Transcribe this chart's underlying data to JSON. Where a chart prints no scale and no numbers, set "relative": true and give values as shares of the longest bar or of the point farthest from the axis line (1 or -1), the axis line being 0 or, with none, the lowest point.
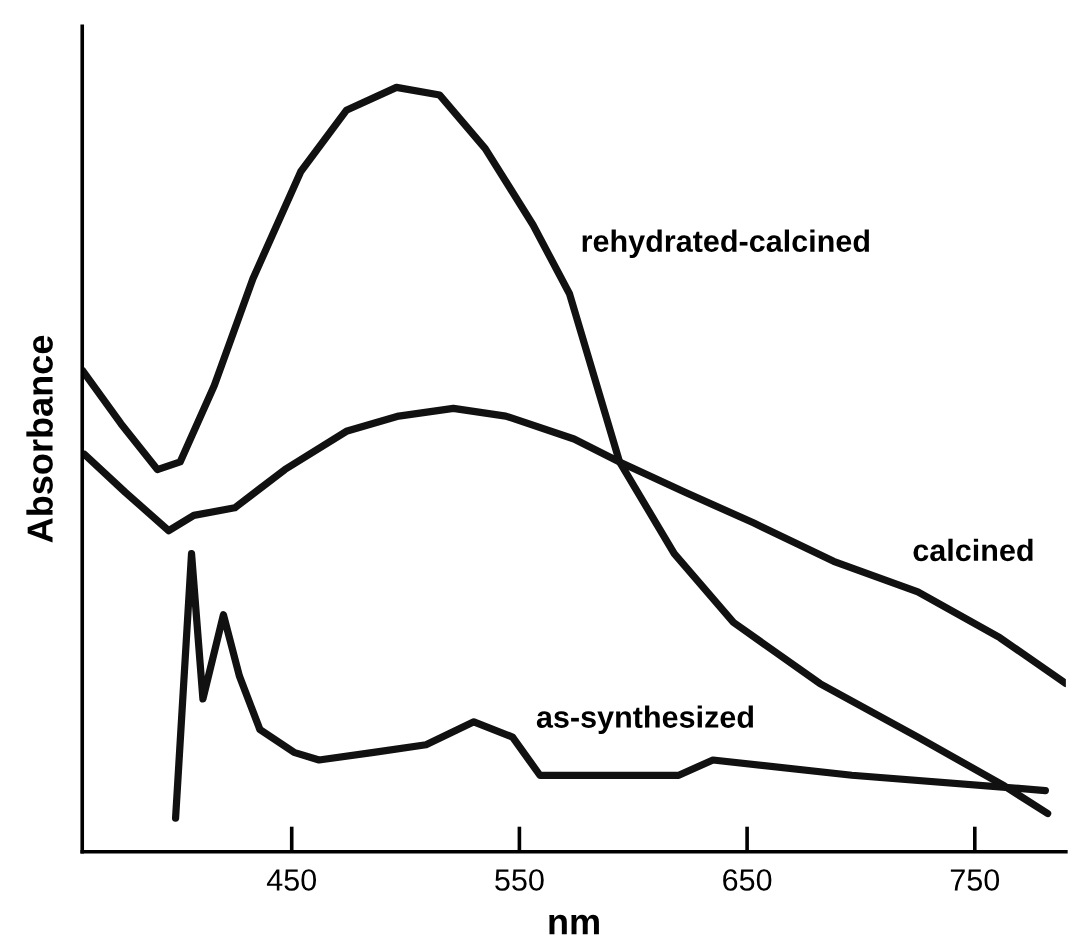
{
  "chart_data": {
    "type": "line",
    "relative": true,
    "xlabel": "nm",
    "ylabel": "Absorbance",
    "xlim": [
      358,
      790
    ],
    "xticks": [
      450,
      550,
      650,
      750
    ],
    "tick_labels": "x",
    "grid": false,
    "legend": false,
    "marker": "none",
    "line_style": "solid",
    "series": [
      {
        "name": "rehydrated-calcined",
        "color": "#111111",
        "x": [
          358,
          375,
          391,
          401,
          416,
          433,
          454,
          474,
          496,
          515,
          535,
          556,
          572,
          594,
          618,
          644,
          682,
          725,
          763,
          782
        ],
        "values": [
          0.63,
          0.56,
          0.5,
          0.51,
          0.61,
          0.75,
          0.89,
          0.97,
          1.0,
          0.99,
          0.92,
          0.82,
          0.73,
          0.51,
          0.39,
          0.3,
          0.22,
          0.15,
          0.086,
          0.05
        ]
      },
      {
        "name": "calcined",
        "color": "#111111",
        "x": [
          359,
          377,
          396,
          407,
          425,
          447,
          474,
          497,
          521,
          544,
          574,
          594,
          623,
          653,
          688,
          725,
          761,
          790
        ],
        "values": [
          0.52,
          0.47,
          0.42,
          0.44,
          0.45,
          0.5,
          0.55,
          0.57,
          0.58,
          0.57,
          0.54,
          0.51,
          0.47,
          0.43,
          0.38,
          0.34,
          0.28,
          0.22
        ]
      },
      {
        "name": "as-synthesized",
        "color": "#111111",
        "x": [
          399,
          406,
          411,
          420,
          427,
          436,
          451,
          462,
          486,
          509,
          530,
          547,
          559,
          620,
          635,
          696,
          781
        ],
        "values": [
          0.044,
          0.39,
          0.2,
          0.31,
          0.23,
          0.16,
          0.13,
          0.12,
          0.13,
          0.14,
          0.17,
          0.15,
          0.1,
          0.1,
          0.12,
          0.1,
          0.08
        ]
      }
    ]
  }
}
